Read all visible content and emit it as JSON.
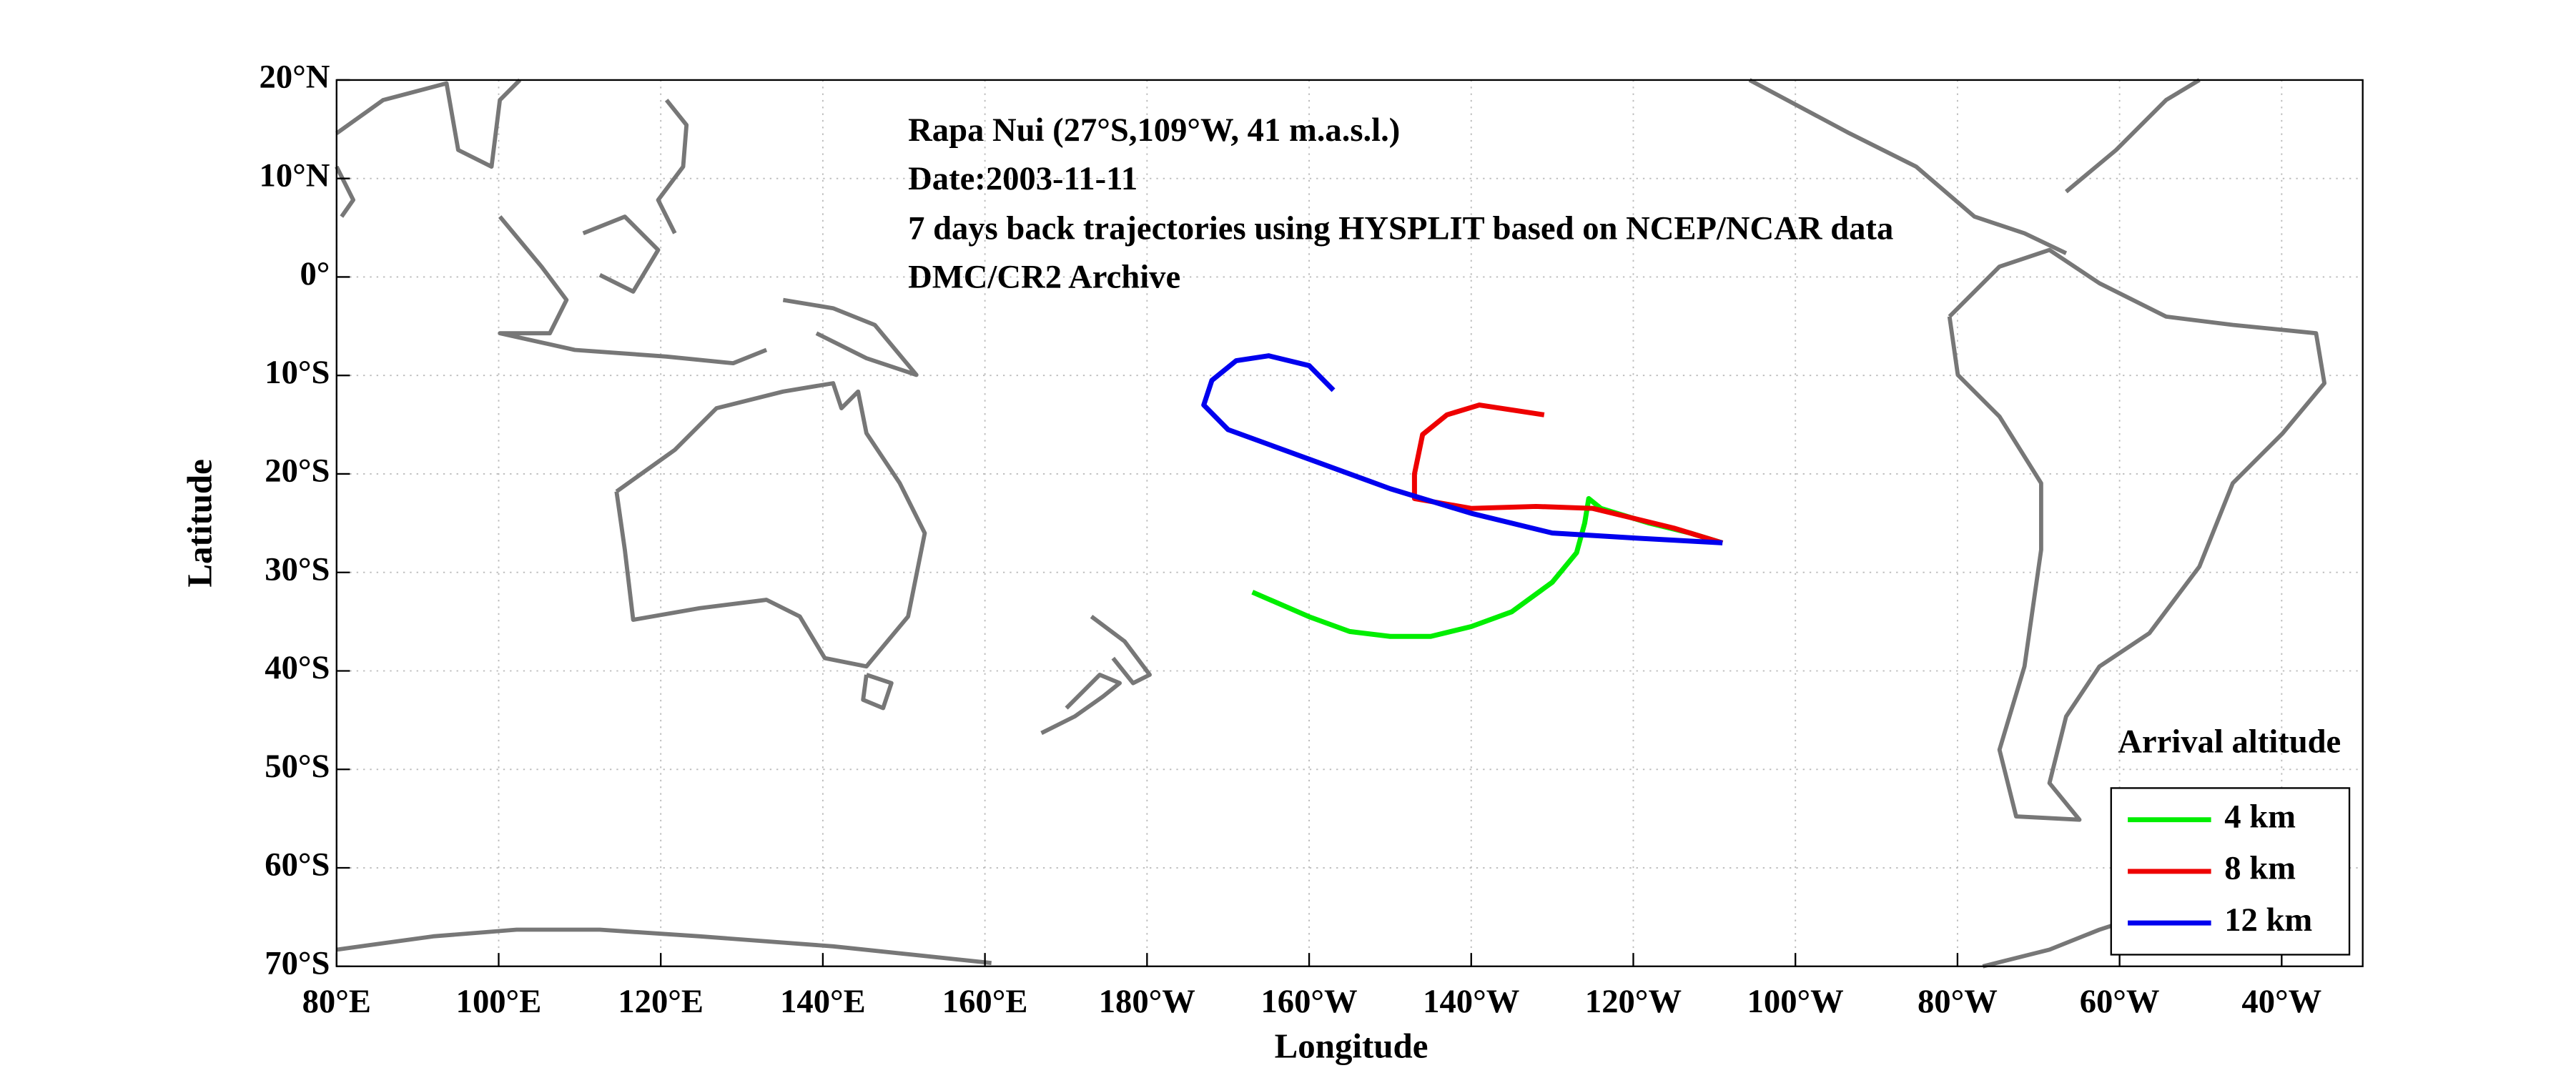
{
  "chart_data": {
    "type": "line",
    "annotations": [
      "Rapa Nui (27°S,109°W, 41 m.a.s.l.)",
      "Date:2003-11-11",
      "7 days back trajectories using HYSPLIT based on NCEP/NCAR data",
      "DMC/CR2 Archive"
    ],
    "x_label": "Longitude",
    "y_label": "Latitude",
    "legend_title": "Arrival altitude",
    "legend": "lower right",
    "grid": true,
    "xlim": [
      80,
      330
    ],
    "xticks": [
      {
        "value": 80,
        "label": "80°E"
      },
      {
        "value": 100,
        "label": "100°E"
      },
      {
        "value": 120,
        "label": "120°E"
      },
      {
        "value": 140,
        "label": "140°E"
      },
      {
        "value": 160,
        "label": "160°E"
      },
      {
        "value": 180,
        "label": "180°W"
      },
      {
        "value": 200,
        "label": "160°W"
      },
      {
        "value": 220,
        "label": "140°W"
      },
      {
        "value": 240,
        "label": "120°W"
      },
      {
        "value": 260,
        "label": "100°W"
      },
      {
        "value": 280,
        "label": "80°W"
      },
      {
        "value": 300,
        "label": "60°W"
      },
      {
        "value": 320,
        "label": "40°W"
      }
    ],
    "ylim": [
      -70,
      20
    ],
    "yticks": [
      {
        "value": -70,
        "label": "70°S"
      },
      {
        "value": -60,
        "label": "60°S"
      },
      {
        "value": -50,
        "label": "50°S"
      },
      {
        "value": -40,
        "label": "40°S"
      },
      {
        "value": -30,
        "label": "30°S"
      },
      {
        "value": -20,
        "label": "20°S"
      },
      {
        "value": -10,
        "label": "10°S"
      },
      {
        "value": 0,
        "label": "0°"
      },
      {
        "value": 10,
        "label": "10°N"
      },
      {
        "value": 20,
        "label": "20°N"
      }
    ],
    "series": [
      {
        "name": "4 km",
        "color": "#00ee00",
        "x": [
          251,
          247,
          242,
          236,
          234.5,
          234,
          233,
          230,
          225,
          220,
          215,
          210,
          205,
          200,
          193
        ],
        "values": [
          -27,
          -26,
          -25,
          -23.5,
          -22.5,
          -25,
          -28,
          -31,
          -34,
          -35.5,
          -36.5,
          -36.5,
          -36,
          -34.5,
          -32
        ]
      },
      {
        "name": "8 km",
        "color": "#ee0000",
        "x": [
          251,
          245,
          235,
          228,
          220,
          213,
          213,
          214,
          217,
          221,
          225,
          229
        ],
        "values": [
          -27,
          -25.5,
          -23.5,
          -23.3,
          -23.5,
          -22.5,
          -20,
          -16,
          -14,
          -13,
          -13.5,
          -14
        ]
      },
      {
        "name": "12 km",
        "color": "#0000ee",
        "x": [
          251,
          240,
          230,
          220,
          210,
          200,
          190,
          187,
          188,
          191,
          195,
          200,
          203
        ],
        "values": [
          -27,
          -26.5,
          -26,
          -24,
          -21.5,
          -18.5,
          -15.5,
          -13,
          -10.5,
          -8.5,
          -8,
          -9,
          -11.5
        ]
      }
    ]
  }
}
